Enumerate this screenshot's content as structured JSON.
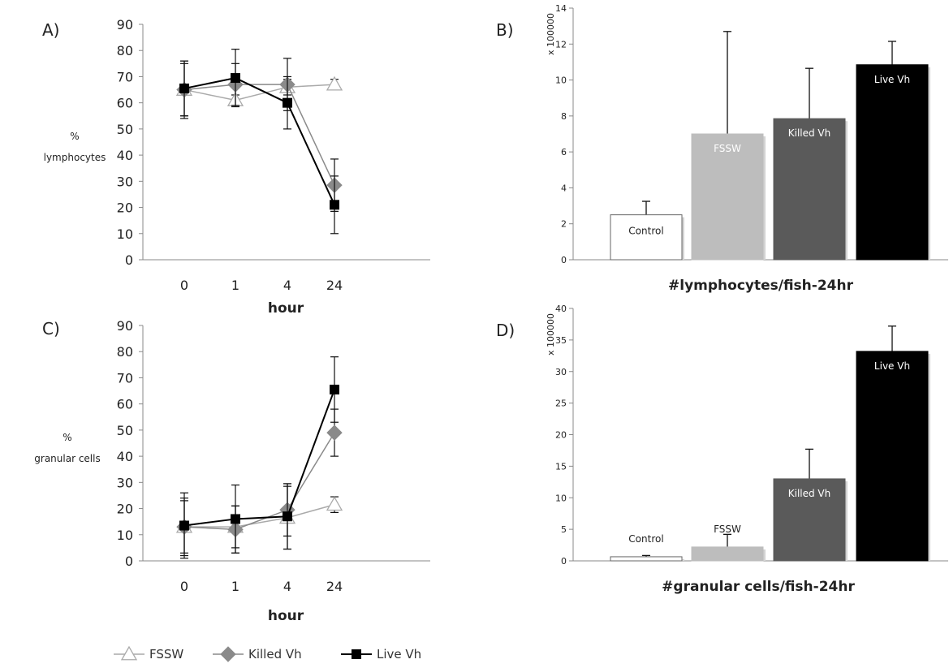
{
  "chart_data": [
    {
      "panel": "A)",
      "type": "line",
      "ylabel": "% lymphocytes",
      "xlabel": "hour",
      "categories": [
        "0",
        "1",
        "4",
        "24"
      ],
      "ylim": [
        0,
        90
      ],
      "yticks": [
        0,
        10,
        20,
        30,
        40,
        50,
        60,
        70,
        80,
        90
      ],
      "series": [
        {
          "name": "FSSW",
          "marker": "triangle-open",
          "color": "#aaaaaa",
          "values": [
            65,
            61,
            66,
            67
          ],
          "errors": [
            10,
            2,
            3,
            2
          ]
        },
        {
          "name": "Killed Vh",
          "marker": "diamond",
          "color": "#8a8a8a",
          "values": [
            65,
            67,
            67,
            28.5
          ],
          "errors": [
            11,
            8,
            10,
            10
          ]
        },
        {
          "name": "Live Vh",
          "marker": "square",
          "color": "#000000",
          "values": [
            65.5,
            69.5,
            60,
            21
          ],
          "errors": [
            10.5,
            11,
            10,
            11
          ]
        }
      ]
    },
    {
      "panel": "B)",
      "type": "bar",
      "ylabel": "x 100000",
      "xlabel": "#lymphocytes/fish-24hr",
      "ylim": [
        0,
        14
      ],
      "yticks": [
        0,
        2,
        4,
        6,
        8,
        10,
        12,
        14
      ],
      "categories": [
        "Control",
        "FSSW",
        "Killed Vh",
        "Live Vh"
      ],
      "values": [
        2.5,
        7.0,
        7.85,
        10.85
      ],
      "errors": [
        0.75,
        5.7,
        2.8,
        1.3
      ],
      "colors": [
        "#ffffff",
        "#bdbdbd",
        "#5a5a5a",
        "#000000"
      ],
      "label_colors": [
        "#222222",
        "#ffffff",
        "#ffffff",
        "#ffffff"
      ]
    },
    {
      "panel": "C)",
      "type": "line",
      "ylabel": "% granular cells",
      "xlabel": "hour",
      "categories": [
        "0",
        "1",
        "4",
        "24"
      ],
      "ylim": [
        0,
        90
      ],
      "yticks": [
        0,
        10,
        20,
        30,
        40,
        50,
        60,
        70,
        80,
        90
      ],
      "series": [
        {
          "name": "FSSW",
          "marker": "triangle-open",
          "color": "#aaaaaa",
          "values": [
            13,
            13,
            16.5,
            21.5
          ],
          "errors": [
            11,
            8,
            12,
            3
          ]
        },
        {
          "name": "Killed Vh",
          "marker": "diamond",
          "color": "#8a8a8a",
          "values": [
            13,
            12,
            19.5,
            49
          ],
          "errors": [
            10,
            9,
            10,
            9
          ]
        },
        {
          "name": "Live Vh",
          "marker": "square",
          "color": "#000000",
          "values": [
            13.5,
            16,
            17,
            65.5
          ],
          "errors": [
            12.5,
            13,
            12.5,
            12.5
          ]
        }
      ]
    },
    {
      "panel": "D)",
      "type": "bar",
      "ylabel": "x 100000",
      "xlabel": "#granular cells/fish-24hr",
      "ylim": [
        0,
        40
      ],
      "yticks": [
        0,
        5,
        10,
        15,
        20,
        25,
        30,
        35,
        40
      ],
      "categories": [
        "Control",
        "FSSW",
        "Killed Vh",
        "Live Vh"
      ],
      "values": [
        0.65,
        2.2,
        13.0,
        33.2
      ],
      "errors": [
        0.2,
        2.0,
        4.7,
        4.0
      ],
      "colors": [
        "#ffffff",
        "#bdbdbd",
        "#5a5a5a",
        "#000000"
      ],
      "label_colors": [
        "#222222",
        "#222222",
        "#ffffff",
        "#ffffff"
      ]
    }
  ],
  "legend": {
    "items": [
      {
        "name": "FSSW",
        "marker": "triangle-open",
        "color": "#aaaaaa"
      },
      {
        "name": "Killed Vh",
        "marker": "diamond",
        "color": "#8a8a8a"
      },
      {
        "name": "Live Vh",
        "marker": "square",
        "color": "#000000"
      }
    ]
  }
}
